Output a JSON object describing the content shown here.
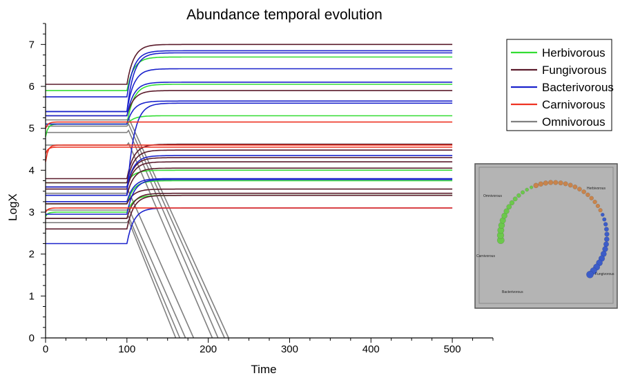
{
  "chart_data": {
    "type": "line",
    "title": "Abundance temporal evolution",
    "xlabel": "Time",
    "ylabel": "LogX",
    "xlim": [
      0,
      550
    ],
    "ylim": [
      0,
      7.5
    ],
    "xticks": [
      "0",
      "100",
      "200",
      "300",
      "400",
      "500"
    ],
    "yticks": [
      "0",
      "1",
      "2",
      "3",
      "4",
      "5",
      "6",
      "7"
    ],
    "grid": false,
    "legend_position": "top-right",
    "legend": [
      {
        "name": "Herbivorous",
        "color": "#33dd33"
      },
      {
        "name": "Fungivorous",
        "color": "#5a1a2a"
      },
      {
        "name": "Bacterivorous",
        "color": "#1a22cc"
      },
      {
        "name": "Carnivorous",
        "color": "#ee3322"
      },
      {
        "name": "Omnivorous",
        "color": "#808080"
      }
    ],
    "perturbation_time": 100,
    "end_time": 500,
    "series": [
      {
        "name": "Herbivorous",
        "color": "#33dd33",
        "trajectories": [
          {
            "initial": 5.9,
            "plateau1": 5.9,
            "plateau2": 6.7
          },
          {
            "initial": 5.1,
            "plateau1": 5.1,
            "plateau2": 6.05
          },
          {
            "initial": 4.8,
            "plateau1": 5.1,
            "plateau2": 5.3
          },
          {
            "initial": 3.7,
            "plateau1": 3.7,
            "plateau2": 4.0
          },
          {
            "initial": 3.2,
            "plateau1": 3.2,
            "plateau2": 3.75
          },
          {
            "initial": 2.9,
            "plateau1": 3.0,
            "plateau2": 3.4
          }
        ]
      },
      {
        "name": "Fungivorous",
        "color": "#5a1a2a",
        "trajectories": [
          {
            "initial": 6.05,
            "plateau1": 6.05,
            "plateau2": 7.0
          },
          {
            "initial": 5.3,
            "plateau1": 5.3,
            "plateau2": 5.9
          },
          {
            "initial": 3.8,
            "plateau1": 3.8,
            "plateau2": 4.62
          },
          {
            "initial": 3.7,
            "plateau1": 3.7,
            "plateau2": 4.48
          },
          {
            "initial": 3.6,
            "plateau1": 3.6,
            "plateau2": 4.3
          },
          {
            "initial": 3.55,
            "plateau1": 3.55,
            "plateau2": 4.2
          },
          {
            "initial": 3.4,
            "plateau1": 3.4,
            "plateau2": 4.05
          },
          {
            "initial": 3.2,
            "plateau1": 3.2,
            "plateau2": 3.55
          },
          {
            "initial": 2.85,
            "plateau1": 2.85,
            "plateau2": 3.45
          },
          {
            "initial": 2.6,
            "plateau1": 2.6,
            "plateau2": 3.4
          }
        ]
      },
      {
        "name": "Bacterivorous",
        "color": "#1a22cc",
        "trajectories": [
          {
            "initial": 5.75,
            "plateau1": 5.75,
            "plateau2": 6.85
          },
          {
            "initial": 5.4,
            "plateau1": 5.4,
            "plateau2": 6.8
          },
          {
            "initial": 5.4,
            "plateau1": 5.4,
            "plateau2": 6.42
          },
          {
            "initial": 5.3,
            "plateau1": 5.3,
            "plateau2": 6.1
          },
          {
            "initial": 5.1,
            "plateau1": 5.1,
            "plateau2": 5.65
          },
          {
            "initial": 3.4,
            "plateau1": 3.4,
            "plateau2": 5.6
          },
          {
            "initial": 3.6,
            "plateau1": 3.6,
            "plateau2": 4.35
          },
          {
            "initial": 3.25,
            "plateau1": 3.25,
            "plateau2": 3.8
          },
          {
            "initial": 2.95,
            "plateau1": 2.95,
            "plateau2": 3.78
          },
          {
            "initial": 2.25,
            "plateau1": 2.25,
            "plateau2": 3.1
          }
        ]
      },
      {
        "name": "Carnivorous",
        "color": "#ee3322",
        "trajectories": [
          {
            "initial": 4.2,
            "plateau1": 4.6,
            "plateau2": 4.6
          },
          {
            "initial": 4.4,
            "plateau1": 4.55,
            "plateau2": 4.55
          },
          {
            "initial": 5.0,
            "plateau1": 5.15,
            "plateau2": 5.15
          },
          {
            "initial": 3.0,
            "plateau1": 3.1,
            "plateau2": 3.1
          }
        ]
      },
      {
        "name": "Omnivorous",
        "color": "#808080",
        "trajectories": [
          {
            "initial": 5.2,
            "plateau1": 5.2,
            "zero_time": 225
          },
          {
            "initial": 5.05,
            "plateau1": 5.05,
            "zero_time": 220
          },
          {
            "initial": 4.9,
            "plateau1": 4.9,
            "zero_time": 212
          },
          {
            "initial": 4.6,
            "plateau1": 4.6,
            "zero_time": 205
          },
          {
            "initial": 3.45,
            "plateau1": 3.45,
            "zero_time": 182
          },
          {
            "initial": 3.05,
            "plateau1": 3.05,
            "zero_time": 172
          },
          {
            "initial": 2.85,
            "plateau1": 2.85,
            "zero_time": 165
          },
          {
            "initial": 2.75,
            "plateau1": 2.75,
            "zero_time": 160
          }
        ]
      }
    ],
    "inset": {
      "labels": [
        "Herbivorous",
        "Omnivorous",
        "Carnivorous",
        "Bacterivorous",
        "Fungivorous"
      ],
      "colors": {
        "background": "#b4b4b4",
        "herbivorous": "#6cc84c",
        "fungivorous": "#c8844c",
        "bacterivorous": "#3c5cc8"
      }
    }
  }
}
